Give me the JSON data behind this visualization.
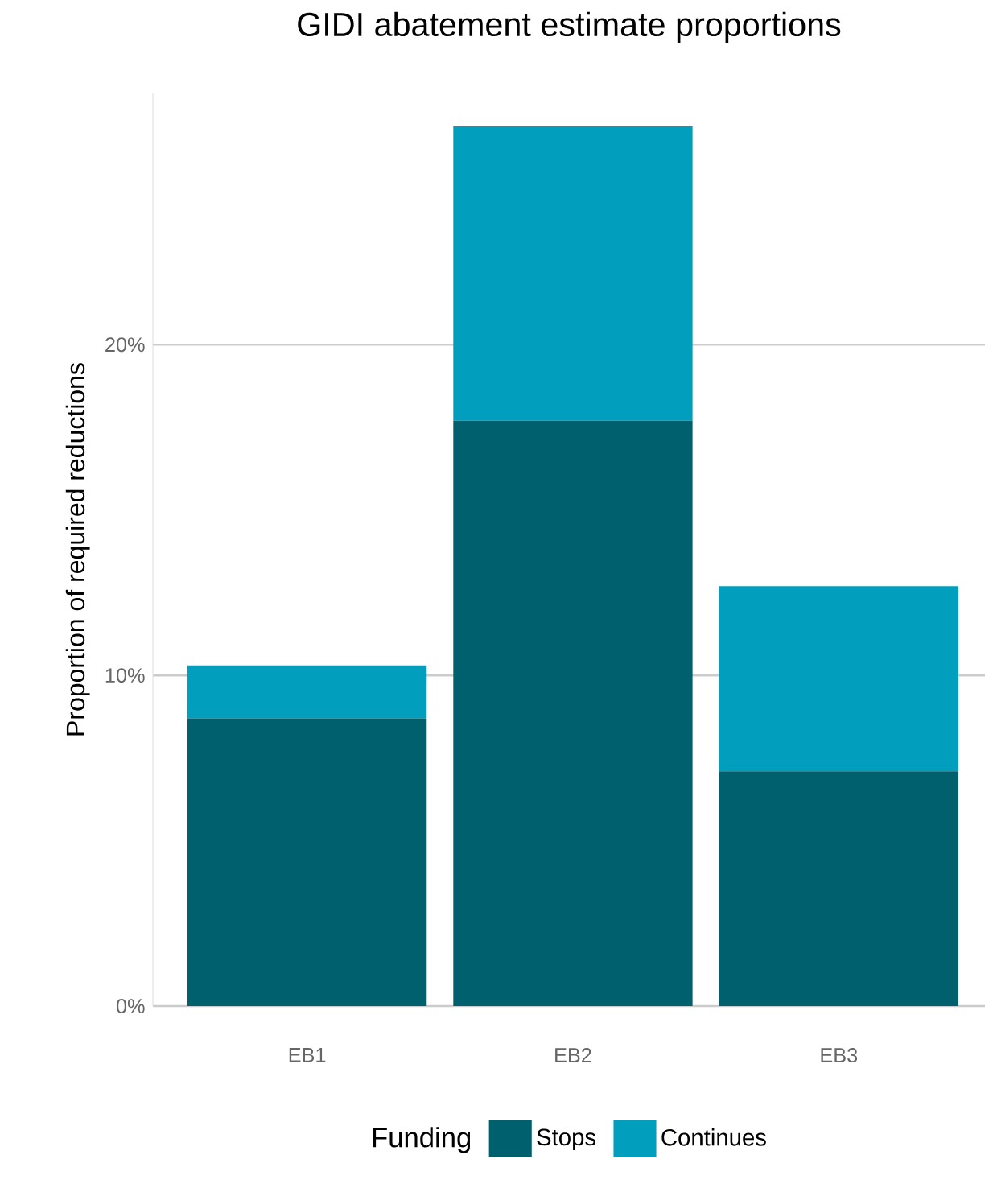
{
  "chart_data": {
    "type": "bar",
    "title": "GIDI abatement estimate proportions",
    "ylabel": "Proportion of required reductions",
    "legend_title": "Funding",
    "categories": [
      "EB1",
      "EB2",
      "EB3"
    ],
    "stacked": true,
    "series": [
      {
        "name": "Stops",
        "color": "#01606e",
        "values": [
          8.7,
          17.7,
          7.1
        ]
      },
      {
        "name": "Continues",
        "color": "#019fbd",
        "values": [
          1.6,
          8.9,
          5.6
        ]
      }
    ],
    "ylim": [
      0,
      27.6
    ],
    "yticks": [
      {
        "value": 0,
        "label": "0%"
      },
      {
        "value": 10,
        "label": "10%"
      },
      {
        "value": 20,
        "label": "20%"
      }
    ],
    "grid": "y",
    "legend": "bottom"
  }
}
